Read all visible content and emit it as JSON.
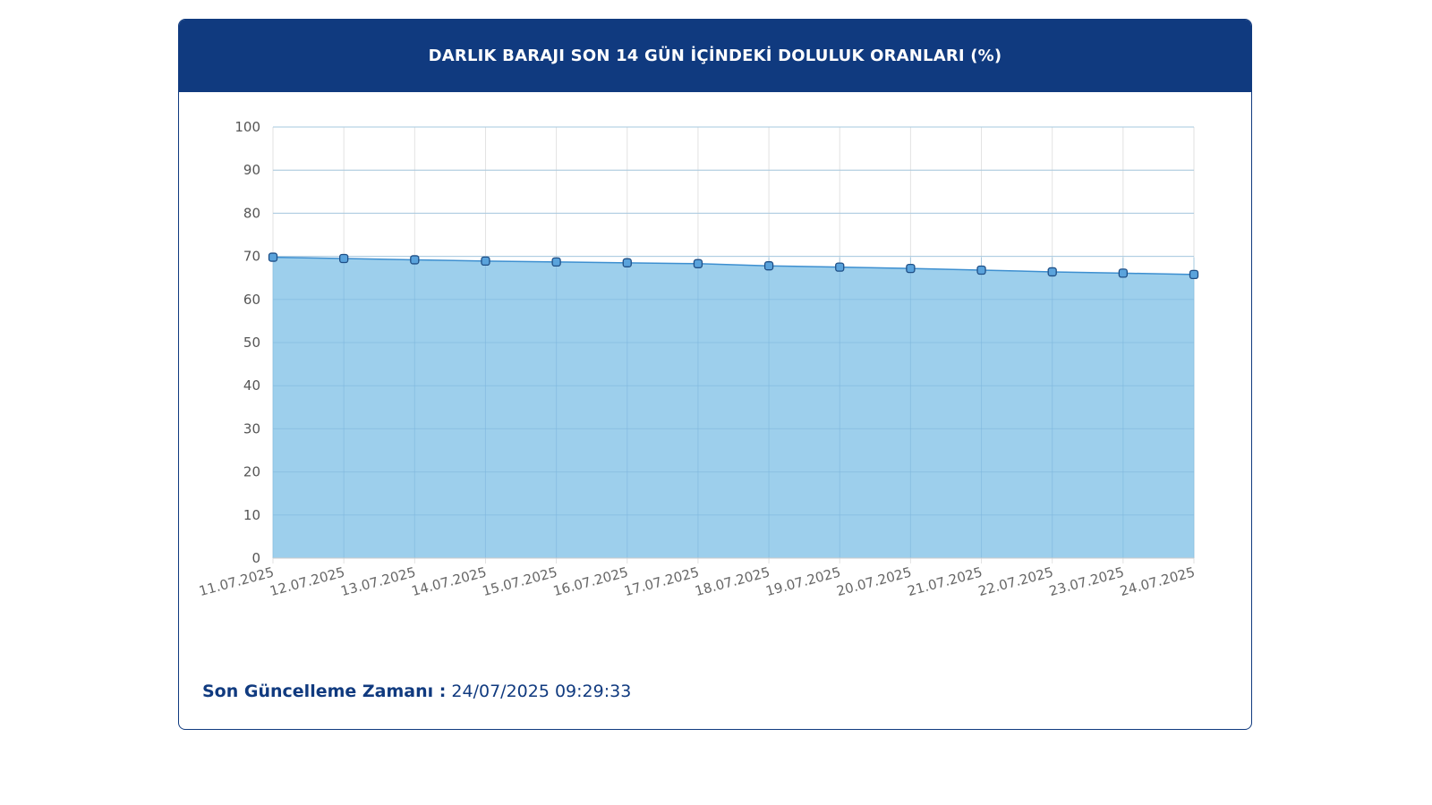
{
  "header": {
    "title": "DARLIK BARAJI SON 14 GÜN İÇİNDEKİ DOLULUK ORANLARI (%)"
  },
  "footer": {
    "label": "Son Güncelleme Zamanı :",
    "value": "24/07/2025 09:29:33"
  },
  "colors": {
    "header_bg": "#103a7f",
    "area_fill": "#9dcfec",
    "line": "#3d8fd0",
    "marker_fill": "#5aa3dc",
    "marker_stroke": "#1f4f86",
    "grid": "#e2e2e2"
  },
  "chart_data": {
    "type": "area",
    "title": "DARLIK BARAJI SON 14 GÜN İÇİNDEKİ DOLULUK ORANLARI (%)",
    "xlabel": "",
    "ylabel": "",
    "ylim": [
      0,
      100
    ],
    "yticks": [
      0,
      10,
      20,
      30,
      40,
      50,
      60,
      70,
      80,
      90,
      100
    ],
    "grid": true,
    "legend": "none",
    "categories": [
      "11.07.2025",
      "12.07.2025",
      "13.07.2025",
      "14.07.2025",
      "15.07.2025",
      "16.07.2025",
      "17.07.2025",
      "18.07.2025",
      "19.07.2025",
      "20.07.2025",
      "21.07.2025",
      "22.07.2025",
      "23.07.2025",
      "24.07.2025"
    ],
    "series": [
      {
        "values": [
          69.8,
          69.5,
          69.2,
          68.9,
          68.7,
          68.5,
          68.3,
          67.8,
          67.5,
          67.2,
          66.8,
          66.4,
          66.1,
          65.8
        ]
      }
    ]
  }
}
